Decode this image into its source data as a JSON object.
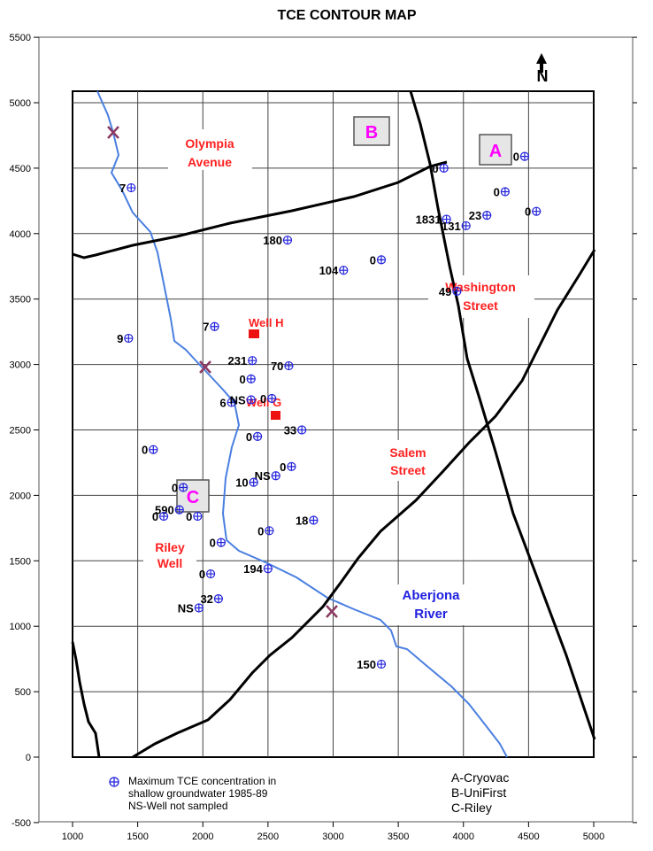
{
  "title": "TCE CONTOUR MAP",
  "north_symbol": "N",
  "axis": {
    "x_ticks": [
      "1000",
      "1500",
      "2000",
      "2500",
      "3000",
      "3500",
      "4000",
      "4500",
      "5000"
    ],
    "y_ticks": [
      "5500",
      "5000",
      "4500",
      "4000",
      "3500",
      "3000",
      "2500",
      "2000",
      "1500",
      "1000",
      "500",
      "0",
      "-500"
    ]
  },
  "place_labels": {
    "olympia_1": "Olympia",
    "olympia_2": "Avenue",
    "washington_1": "Washington",
    "washington_2": "Street",
    "salem_1": "Salem",
    "salem_2": "Street",
    "riley_1": "Riley",
    "riley_2": "Well",
    "well_h": "Well H",
    "well_g": "Well G",
    "river_1": "Aberjona",
    "river_2": "River"
  },
  "sites": [
    "A",
    "B",
    "C"
  ],
  "wells": [
    {
      "label": "7",
      "x": 1450,
      "y": 4350
    },
    {
      "label": "180",
      "x": 2650,
      "y": 3950
    },
    {
      "label": "104",
      "x": 3080,
      "y": 3720
    },
    {
      "label": "0",
      "x": 3370,
      "y": 3800
    },
    {
      "label": "0",
      "x": 3850,
      "y": 4500
    },
    {
      "label": "0",
      "x": 4470,
      "y": 4590
    },
    {
      "label": "0",
      "x": 4320,
      "y": 4320
    },
    {
      "label": "0",
      "x": 4560,
      "y": 4170
    },
    {
      "label": "1831",
      "x": 3870,
      "y": 4110
    },
    {
      "label": "131",
      "x": 4020,
      "y": 4060
    },
    {
      "label": "23",
      "x": 4180,
      "y": 4140
    },
    {
      "label": "49",
      "x": 3950,
      "y": 3560
    },
    {
      "label": "9",
      "x": 1430,
      "y": 3200
    },
    {
      "label": "7",
      "x": 2090,
      "y": 3290
    },
    {
      "label": "231",
      "x": 2380,
      "y": 3030
    },
    {
      "label": "70",
      "x": 2660,
      "y": 2990
    },
    {
      "label": "0",
      "x": 2370,
      "y": 2890
    },
    {
      "label": "6",
      "x": 2220,
      "y": 2710
    },
    {
      "label": "NS",
      "x": 2370,
      "y": 2730
    },
    {
      "label": "0",
      "x": 2530,
      "y": 2740
    },
    {
      "label": "33",
      "x": 2760,
      "y": 2500
    },
    {
      "label": "0",
      "x": 2420,
      "y": 2450
    },
    {
      "label": "0",
      "x": 1620,
      "y": 2350
    },
    {
      "label": "0",
      "x": 2680,
      "y": 2220
    },
    {
      "label": "NS",
      "x": 2560,
      "y": 2150
    },
    {
      "label": "10",
      "x": 2390,
      "y": 2100
    },
    {
      "label": "0",
      "x": 1850,
      "y": 2060
    },
    {
      "label": "590",
      "x": 1820,
      "y": 1890
    },
    {
      "label": "0",
      "x": 1700,
      "y": 1840
    },
    {
      "label": "0",
      "x": 1960,
      "y": 1840
    },
    {
      "label": "18",
      "x": 2850,
      "y": 1810
    },
    {
      "label": "0",
      "x": 2510,
      "y": 1730
    },
    {
      "label": "0",
      "x": 2140,
      "y": 1640
    },
    {
      "label": "194",
      "x": 2500,
      "y": 1440
    },
    {
      "label": "0",
      "x": 2060,
      "y": 1400
    },
    {
      "label": "32",
      "x": 2120,
      "y": 1210
    },
    {
      "label": "NS",
      "x": 1970,
      "y": 1140
    },
    {
      "label": "150",
      "x": 3370,
      "y": 710
    }
  ],
  "legend": {
    "line1": "Maximum TCE concentration in",
    "line2": "shallow groundwater 1985-89",
    "line3": "NS-Well not sampled"
  },
  "key": [
    "A-Cryovac",
    "B-UniFirst",
    "C-Riley"
  ]
}
